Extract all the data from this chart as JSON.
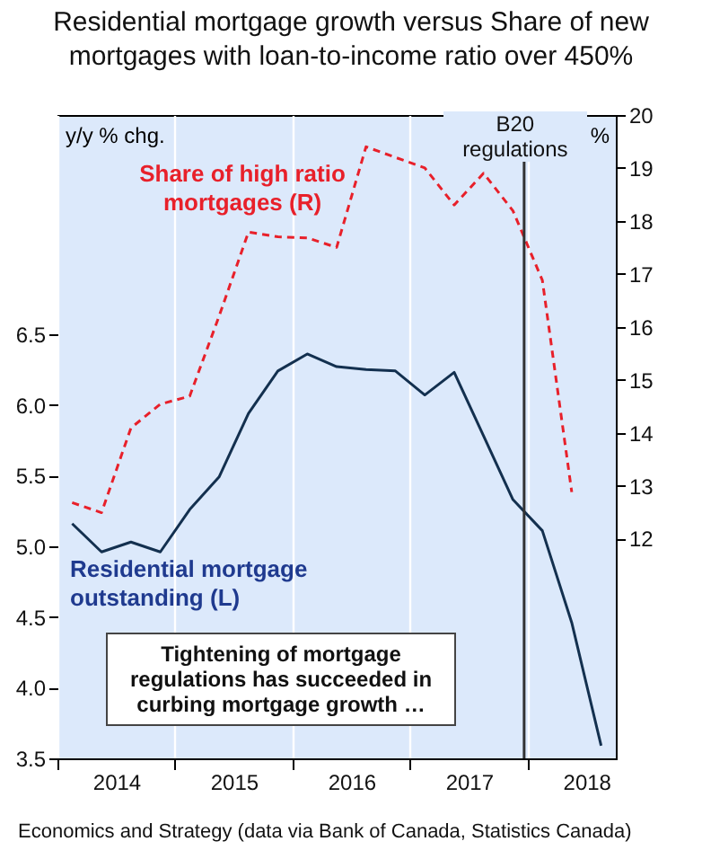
{
  "chart_data": {
    "type": "line",
    "title": "Residential mortgage growth versus Share of new mortgages with loan-to-income ratio over 450%",
    "ylabel": "y/y % chg.",
    "y2label": "%",
    "x": [
      2014.125,
      2014.375,
      2014.625,
      2014.875,
      2015.125,
      2015.375,
      2015.625,
      2015.875,
      2016.125,
      2016.375,
      2016.625,
      2016.875,
      2017.125,
      2017.375,
      2017.625,
      2017.875,
      2018.125,
      2018.375,
      2018.625
    ],
    "series": [
      {
        "name": "Residential mortgage outstanding (L)",
        "color": "#13304f",
        "line_style": "solid",
        "values": [
          5.16,
          4.96,
          5.03,
          4.96,
          5.26,
          5.49,
          5.94,
          6.24,
          6.36,
          6.27,
          6.25,
          6.24,
          6.07,
          6.23,
          5.78,
          5.33,
          5.11,
          4.46,
          3.59
        ]
      },
      {
        "name": "Share of high ratio mortgages (R)",
        "color": "#e8202a",
        "line_style": "dashed",
        "axis": "y2",
        "values": [
          12.68,
          12.49,
          14.09,
          14.54,
          14.69,
          16.2,
          17.79,
          17.7,
          17.68,
          17.5,
          19.4,
          19.2,
          19.0,
          18.3,
          18.9,
          18.19,
          16.88,
          12.88,
          null
        ]
      }
    ],
    "xlim": [
      2014,
      2018.75
    ],
    "xticks": [
      {
        "value": 2014,
        "label": null
      },
      {
        "value": 2014.5,
        "label": "2014"
      },
      {
        "value": 2015,
        "label": null
      },
      {
        "value": 2015.5,
        "label": "2015"
      },
      {
        "value": 2016,
        "label": null
      },
      {
        "value": 2016.5,
        "label": "2016"
      },
      {
        "value": 2017,
        "label": null
      },
      {
        "value": 2017.5,
        "label": "2017"
      },
      {
        "value": 2018,
        "label": null
      },
      {
        "value": 2018.5,
        "label": "2018"
      }
    ],
    "ylim": [
      3.5,
      8.05
    ],
    "yticks": [
      3.5,
      {
        "value": 4,
        "label": "4.0"
      },
      4.5,
      {
        "value": 5,
        "label": "5.0"
      },
      5.5,
      {
        "value": 6,
        "label": "6.0"
      },
      6.5
    ],
    "y2lim": [
      7.85,
      20
    ],
    "y2ticks": [
      12,
      13,
      14,
      15,
      16,
      17,
      18,
      19,
      20
    ],
    "grid": "x",
    "ref_lines": [
      {
        "axis": "x",
        "value": 2017.97,
        "label": "B20 regulations",
        "color": "#333333"
      }
    ],
    "annotations": [
      "Tightening of mortgage regulations has succeeded in curbing mortgage growth …",
      "Economics and Strategy (data via Bank of Canada, Statistics Canada)"
    ]
  }
}
